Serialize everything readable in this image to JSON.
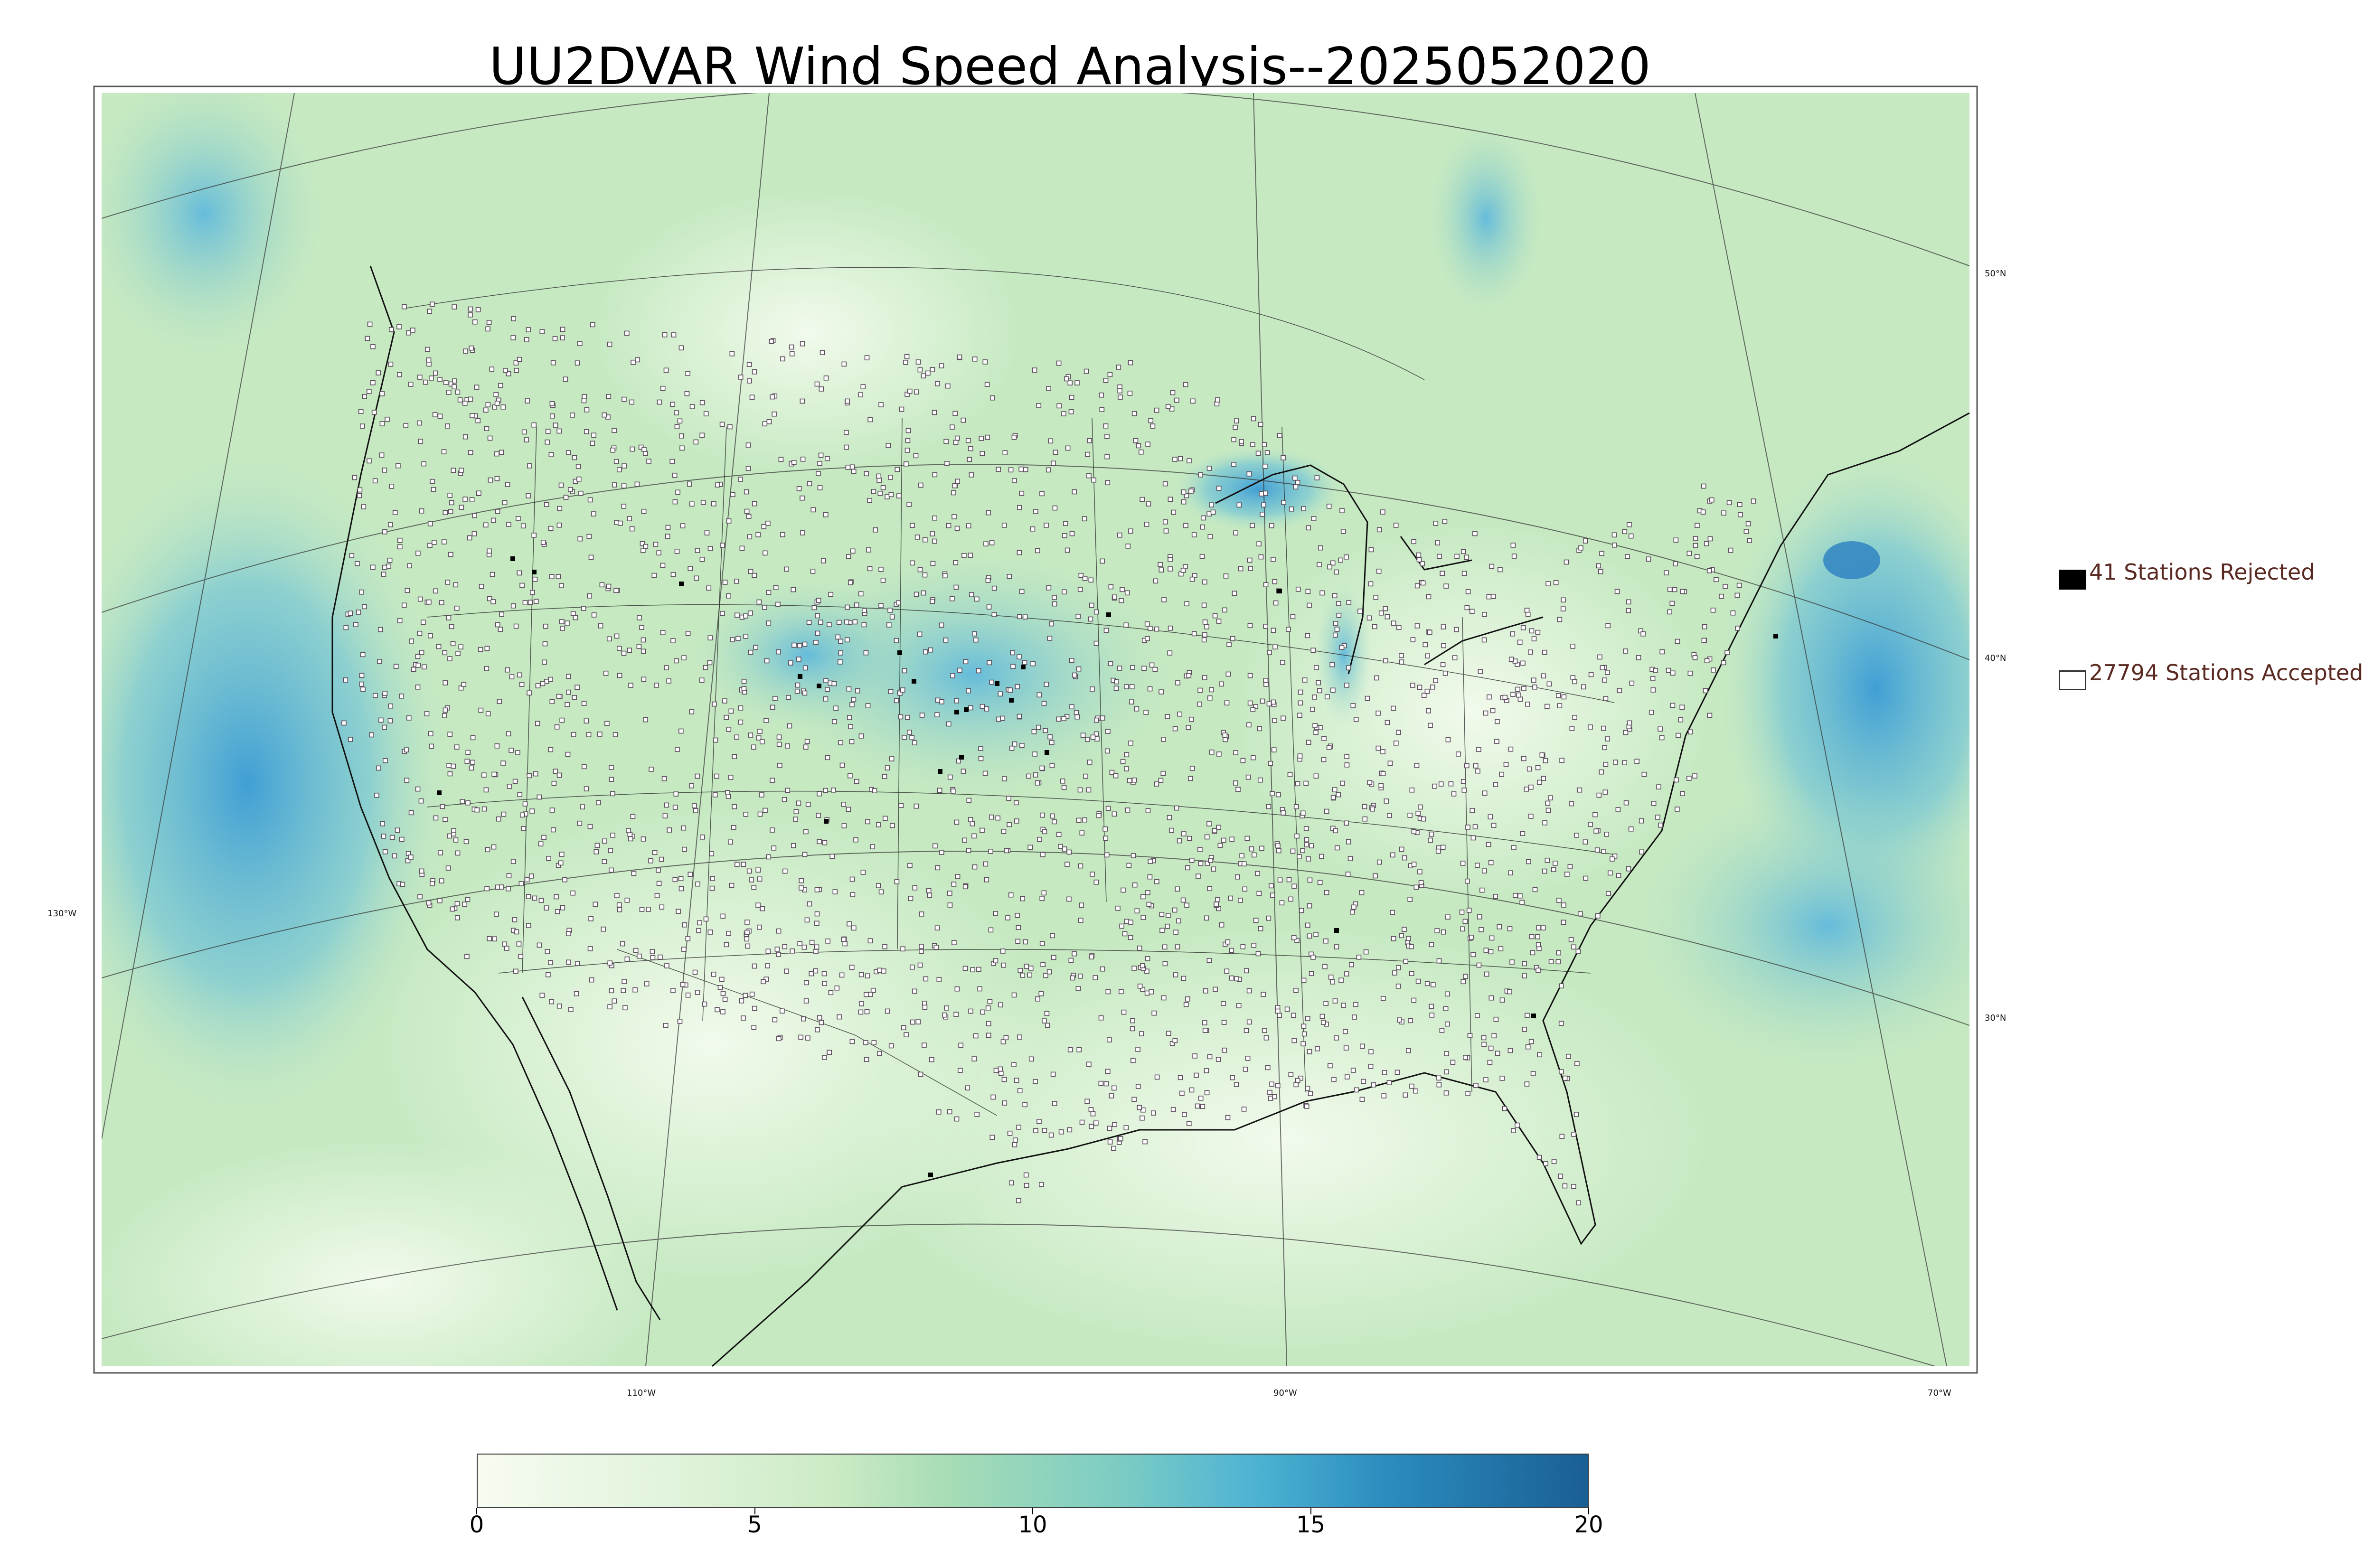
{
  "title": "UU2DVAR Wind Speed Analysis--2025052020",
  "graticule_labels": {
    "lon": [
      "130°W",
      "110°W",
      "90°W",
      "70°W"
    ],
    "lat": [
      "50°N",
      "40°N",
      "30°N"
    ]
  },
  "legend": {
    "rejected": "41 Stations Rejected",
    "accepted": "27794 Stations Accepted"
  },
  "colorbar": {
    "ticks": [
      "0",
      "5",
      "10",
      "15",
      "20"
    ],
    "range": [
      0,
      20
    ],
    "colors": [
      "#f7fcf0",
      "#e0f3db",
      "#ccebc5",
      "#a8ddb5",
      "#7bccc4",
      "#4eb3d3",
      "#2b8cbe",
      "#1a5f94"
    ]
  },
  "colors": {
    "land_low": "#e6f5d8",
    "land_mid": "#bfe6bd",
    "wind_mid": "#7fcdbb",
    "wind_high": "#41a8d6",
    "wind_max": "#2b7fc0",
    "rejected": "#000000",
    "accepted": "#ffffff"
  }
}
